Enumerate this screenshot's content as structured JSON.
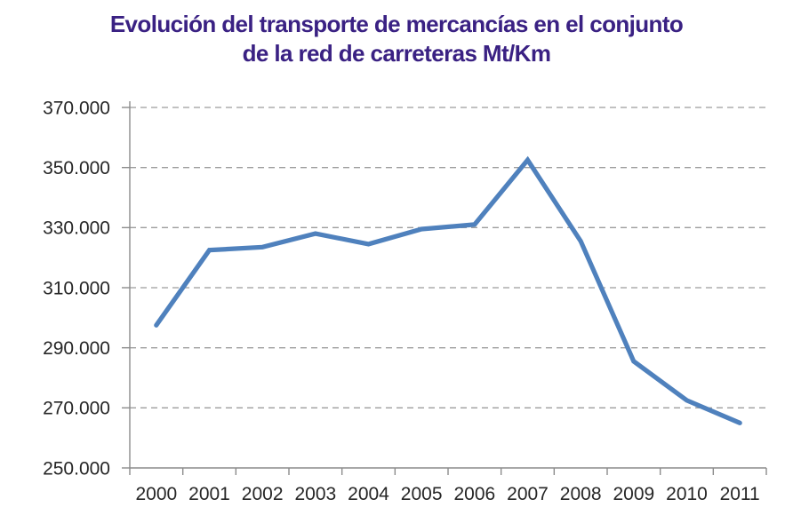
{
  "title_lines": [
    "Evolución del transporte de mercancías en el conjunto",
    "de la red de carreteras Mt/Km"
  ],
  "colors": {
    "title": "#3A2183",
    "line": "#4F81BD",
    "grid": "#9C9C9C",
    "axis": "#8C8C8C",
    "tick_label": "#262626",
    "background": "#FFFFFF"
  },
  "chart_data": {
    "type": "line",
    "title": "Evolución del transporte de mercancías en el conjunto de la red de carreteras Mt/Km",
    "unit": "Mt/Km",
    "categories": [
      "2000",
      "2001",
      "2002",
      "2003",
      "2004",
      "2005",
      "2006",
      "2007",
      "2008",
      "2009",
      "2010",
      "2011"
    ],
    "values": [
      297500,
      322500,
      323500,
      328000,
      324500,
      329500,
      331000,
      352500,
      325500,
      285500,
      272500,
      265000
    ],
    "xlabel": "",
    "ylabel": "",
    "ylim": [
      250000,
      370000
    ],
    "ytick_step": 20000,
    "ytick_labels": [
      "250.000",
      "270.000",
      "290.000",
      "310.000",
      "330.000",
      "350.000",
      "370.000"
    ],
    "grid": "horizontal-dashed",
    "legend": "none"
  }
}
